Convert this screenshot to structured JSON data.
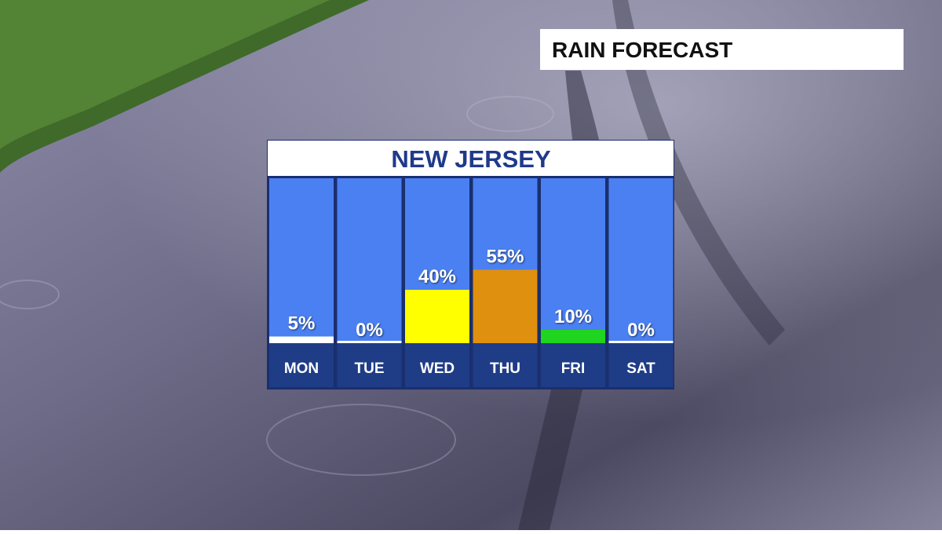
{
  "header": "RAIN FORECAST",
  "chart_data": {
    "type": "bar",
    "title": "NEW JERSEY",
    "categories": [
      "MON",
      "TUE",
      "WED",
      "THU",
      "FRI",
      "SAT"
    ],
    "values": [
      5,
      0,
      40,
      55,
      10,
      0
    ],
    "value_labels": [
      "5%",
      "0%",
      "40%",
      "55%",
      "10%",
      "0%"
    ],
    "colors": [
      "#ffffff",
      "#ffffff",
      "#ffff00",
      "#e0900f",
      "#1fd51f",
      "#ffffff"
    ]
  }
}
